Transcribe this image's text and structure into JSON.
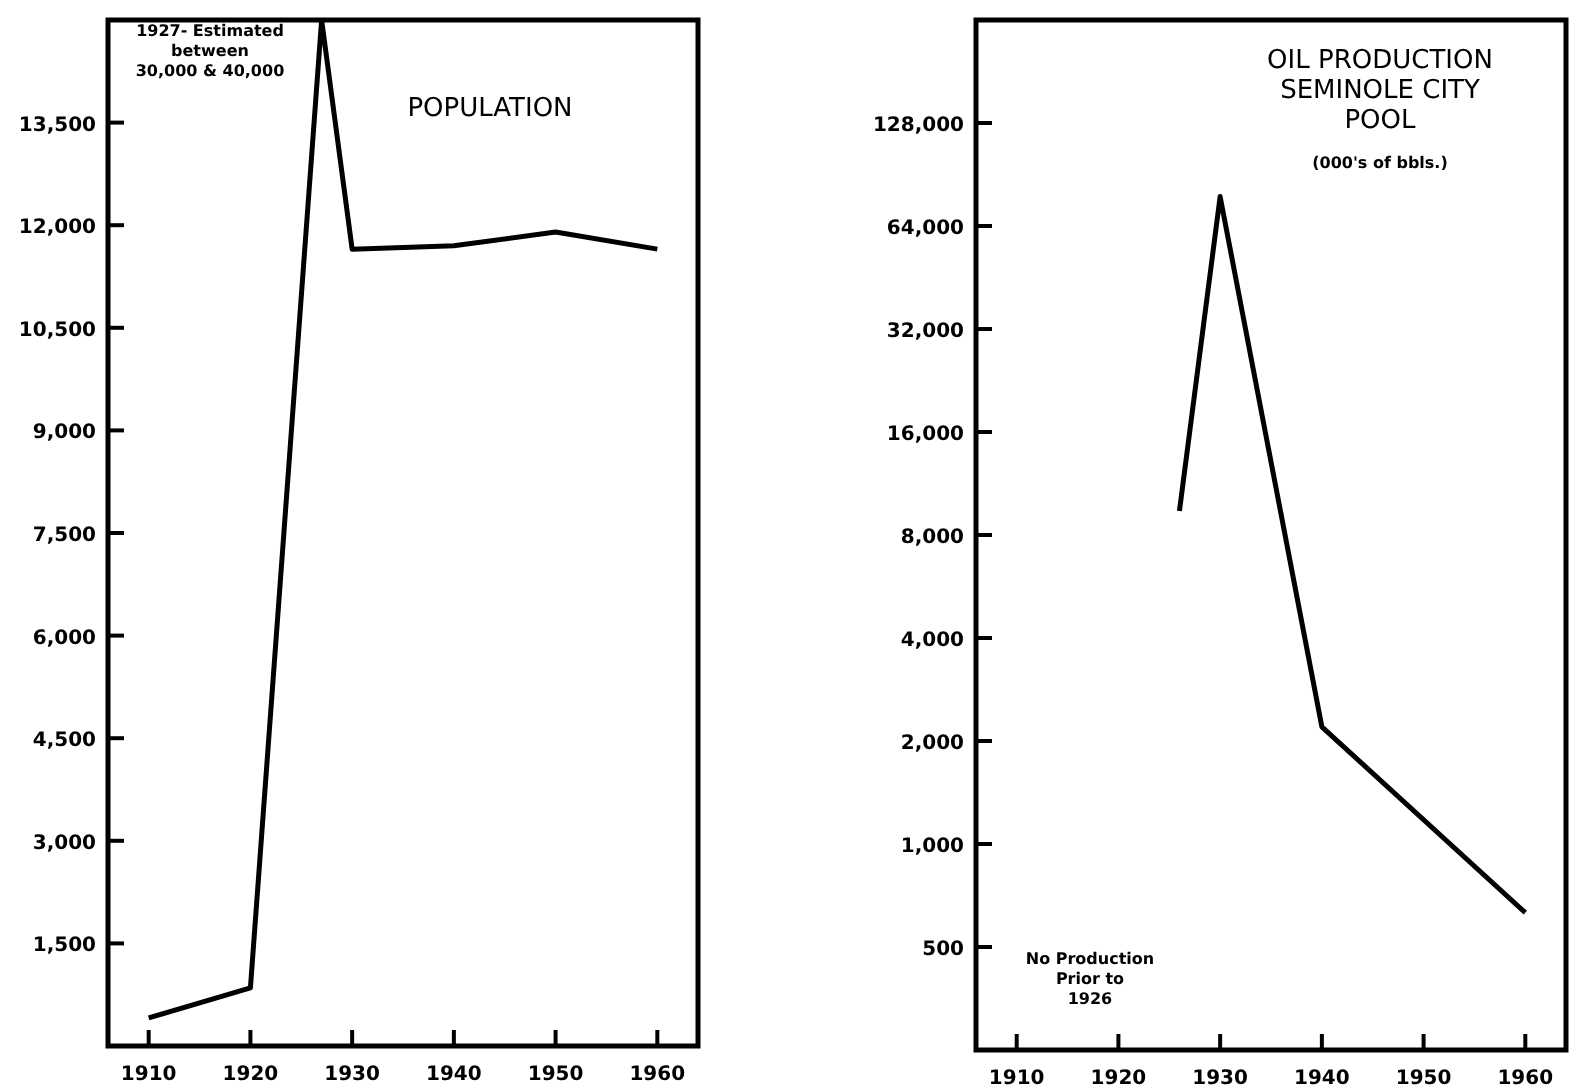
{
  "chart_data": [
    {
      "type": "line",
      "title": "POPULATION",
      "annotations": [
        "1927- Estimated\nbetween\n30,000 & 40,000"
      ],
      "x": [
        1910,
        1920,
        1927,
        1930,
        1940,
        1950,
        1960
      ],
      "series": [
        {
          "color": "#000000",
          "values": [
            410,
            850,
            15000,
            11650,
            11700,
            11900,
            11650
          ]
        }
      ],
      "xlim": [
        1906,
        1964
      ],
      "xticks": [
        1910,
        1920,
        1930,
        1940,
        1950,
        1960
      ],
      "ylim": [
        0,
        15000
      ],
      "yticks": [
        {
          "value": 1500,
          "label": "1,500"
        },
        {
          "value": 3000,
          "label": "3,000"
        },
        {
          "value": 4500,
          "label": "4,500"
        },
        {
          "value": 6000,
          "label": "6,000"
        },
        {
          "value": 7500,
          "label": "7,500"
        },
        {
          "value": 9000,
          "label": "9,000"
        },
        {
          "value": 10500,
          "label": "10,500"
        },
        {
          "value": 12000,
          "label": "12,000"
        },
        {
          "value": 13500,
          "label": "13,500"
        }
      ]
    },
    {
      "type": "line",
      "title": "OIL PRODUCTION\nSEMINOLE CITY\nPOOL",
      "subtitle": "(000's of bbls.)",
      "annotations": [
        "No Production\nPrior to\n1926"
      ],
      "x": [
        1926,
        1930,
        1940,
        1960
      ],
      "series": [
        {
          "color": "#000000",
          "values": [
            9400,
            78000,
            2200,
            630
          ]
        }
      ],
      "log": "y",
      "xlim": [
        1906,
        1964
      ],
      "xticks": [
        1910,
        1920,
        1930,
        1940,
        1950,
        1960
      ],
      "ylim": [
        250,
        256000
      ],
      "yticks": [
        500,
        {
          "value": 1000,
          "label": "1,000"
        },
        {
          "value": 2000,
          "label": "2,000"
        },
        {
          "value": 4000,
          "label": "4,000"
        },
        {
          "value": 8000,
          "label": "8,000"
        },
        {
          "value": 16000,
          "label": "16,000"
        },
        {
          "value": 32000,
          "label": "32,000"
        },
        {
          "value": 64000,
          "label": "64,000"
        },
        {
          "value": 128000,
          "label": "128,000"
        }
      ]
    }
  ]
}
